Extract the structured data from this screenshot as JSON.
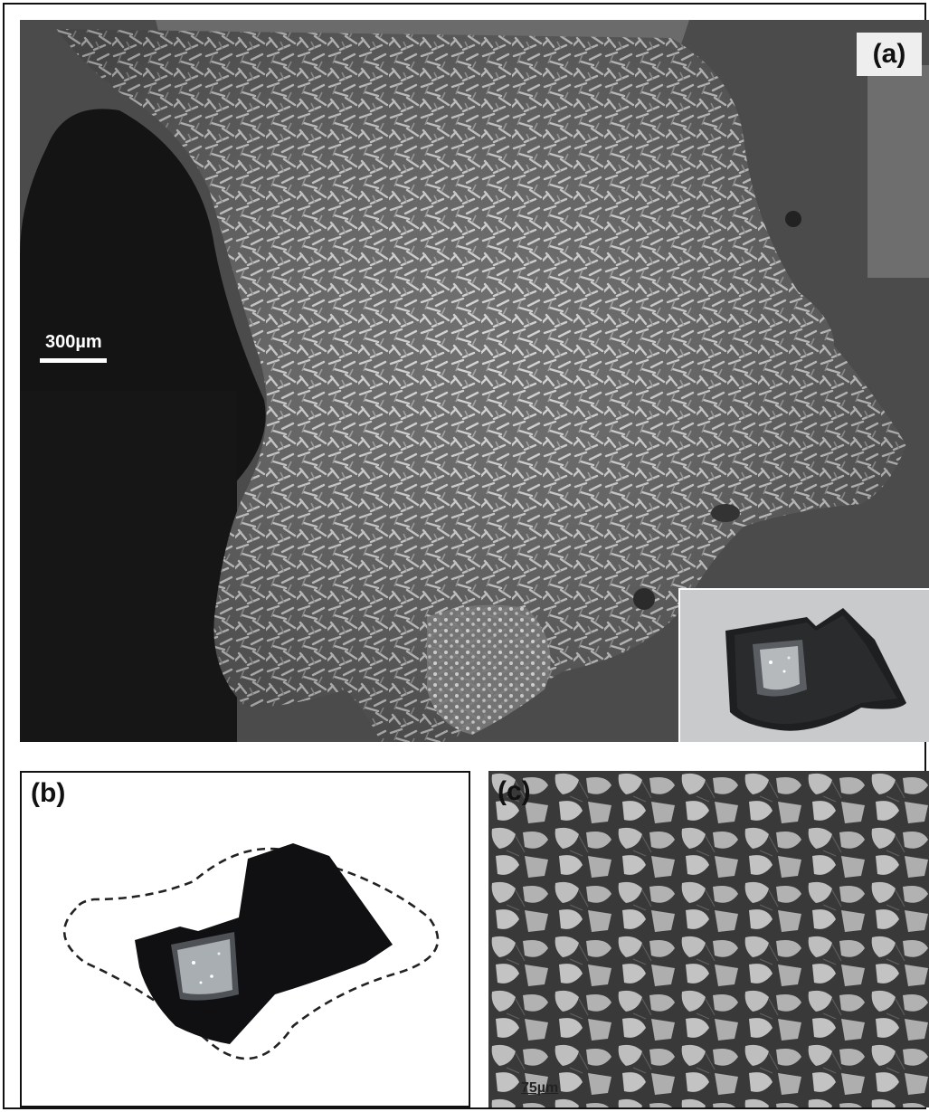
{
  "figure": {
    "panel_a": {
      "label": "(a)",
      "scale_label": "300µm"
    },
    "panel_b": {
      "label": "(b)"
    },
    "panel_c": {
      "label": "(c)",
      "scale_label": "75µm"
    }
  }
}
